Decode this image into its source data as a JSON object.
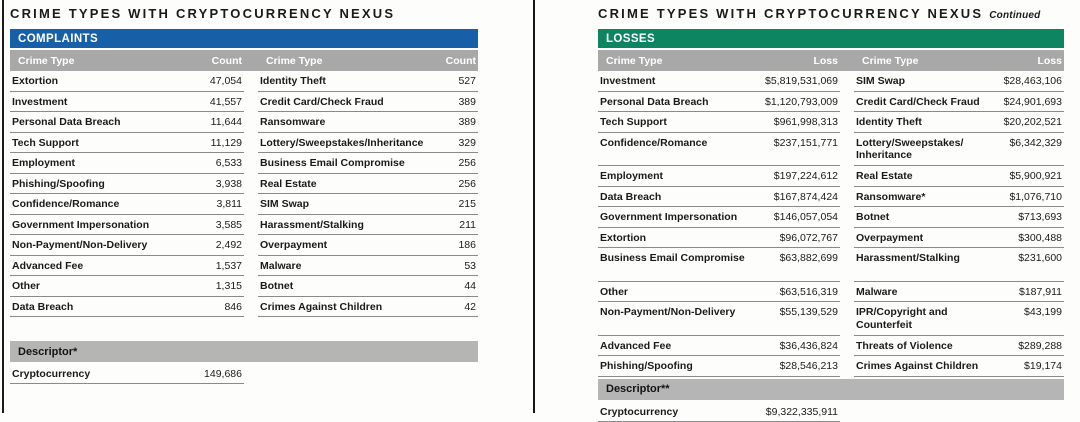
{
  "colors": {
    "complaints_bar": "#1760a8",
    "losses_bar": "#0d8560",
    "column_header_gray": "#a8a8a8",
    "descriptor_gray": "#b5b5b5"
  },
  "left_panel": {
    "title": "CRIME TYPES WITH CRYPTOCURRENCY NEXUS",
    "section_label": "COMPLAINTS",
    "col_headers": [
      "Crime Type",
      "Count",
      "Crime Type",
      "Count"
    ],
    "rows": [
      {
        "a_label": "Extortion",
        "a_value": "47,054",
        "b_label": "Identity Theft",
        "b_value": "527"
      },
      {
        "a_label": "Investment",
        "a_value": "41,557",
        "b_label": "Credit Card/Check Fraud",
        "b_value": "389"
      },
      {
        "a_label": "Personal Data Breach",
        "a_value": "11,644",
        "b_label": "Ransomware",
        "b_value": "389"
      },
      {
        "a_label": "Tech Support",
        "a_value": "11,129",
        "b_label": "Lottery/Sweepstakes/Inheritance",
        "b_value": "329"
      },
      {
        "a_label": "Employment",
        "a_value": "6,533",
        "b_label": "Business Email Compromise",
        "b_value": "256"
      },
      {
        "a_label": "Phishing/Spoofing",
        "a_value": "3,938",
        "b_label": "Real Estate",
        "b_value": "256"
      },
      {
        "a_label": "Confidence/Romance",
        "a_value": "3,811",
        "b_label": "SIM Swap",
        "b_value": "215"
      },
      {
        "a_label": "Government Impersonation",
        "a_value": "3,585",
        "b_label": "Harassment/Stalking",
        "b_value": "211"
      },
      {
        "a_label": "Non-Payment/Non-Delivery",
        "a_value": "2,492",
        "b_label": "Overpayment",
        "b_value": "186"
      },
      {
        "a_label": "Advanced Fee",
        "a_value": "1,537",
        "b_label": "Malware",
        "b_value": "53"
      },
      {
        "a_label": "Other",
        "a_value": "1,315",
        "b_label": "Botnet",
        "b_value": "44"
      },
      {
        "a_label": "Data Breach",
        "a_value": "846",
        "b_label": "Crimes Against Children",
        "b_value": "42"
      }
    ],
    "descriptor_label": "Descriptor*",
    "descriptor_row": {
      "label": "Cryptocurrency",
      "value": "149,686"
    }
  },
  "right_panel": {
    "title": "CRIME TYPES WITH CRYPTOCURRENCY NEXUS",
    "title_suffix": "Continued",
    "section_label": "LOSSES",
    "col_headers": [
      "Crime Type",
      "Loss",
      "Crime Type",
      "Loss"
    ],
    "rows": [
      {
        "a_label": "Investment",
        "a_value": "$5,819,531,069",
        "b_label": "SIM Swap",
        "b_value": "$28,463,106"
      },
      {
        "a_label": "Personal Data Breach",
        "a_value": "$1,120,793,009",
        "b_label": "Credit Card/Check Fraud",
        "b_value": "$24,901,693"
      },
      {
        "a_label": "Tech Support",
        "a_value": "$961,998,313",
        "b_label": "Identity Theft",
        "b_value": "$20,202,521"
      },
      {
        "a_label": "Confidence/Romance",
        "a_value": "$237,151,771",
        "b_label": "Lottery/Sweepstakes/\nInheritance",
        "b_value": "$6,342,329",
        "tall": true
      },
      {
        "a_label": "Employment",
        "a_value": "$197,224,612",
        "b_label": "Real Estate",
        "b_value": "$5,900,921"
      },
      {
        "a_label": "Data Breach",
        "a_value": "$167,874,424",
        "b_label": "Ransomware*",
        "b_value": "$1,076,710"
      },
      {
        "a_label": "Government Impersonation",
        "a_value": "$146,057,054",
        "b_label": "Botnet",
        "b_value": "$713,693"
      },
      {
        "a_label": "Extortion",
        "a_value": "$96,072,767",
        "b_label": "Overpayment",
        "b_value": "$300,488"
      },
      {
        "a_label": "Business Email Compromise",
        "a_value": "$63,882,699",
        "b_label": "Harassment/Stalking",
        "b_value": "$231,600",
        "tall": true
      },
      {
        "a_label": "Other",
        "a_value": "$63,516,319",
        "b_label": "Malware",
        "b_value": "$187,911"
      },
      {
        "a_label": "Non-Payment/Non-Delivery",
        "a_value": "$55,139,529",
        "b_label": "IPR/Copyright and\nCounterfeit",
        "b_value": "$43,199",
        "tall": true
      },
      {
        "a_label": "Advanced Fee",
        "a_value": "$36,436,824",
        "b_label": "Threats of Violence",
        "b_value": "$289,288"
      },
      {
        "a_label": "Phishing/Spoofing",
        "a_value": "$28,546,213",
        "b_label": "Crimes Against Children",
        "b_value": "$19,174"
      }
    ],
    "descriptor_label": "Descriptor**",
    "descriptor_row": {
      "label": "Cryptocurrency",
      "value": "$9,322,335,911"
    }
  }
}
